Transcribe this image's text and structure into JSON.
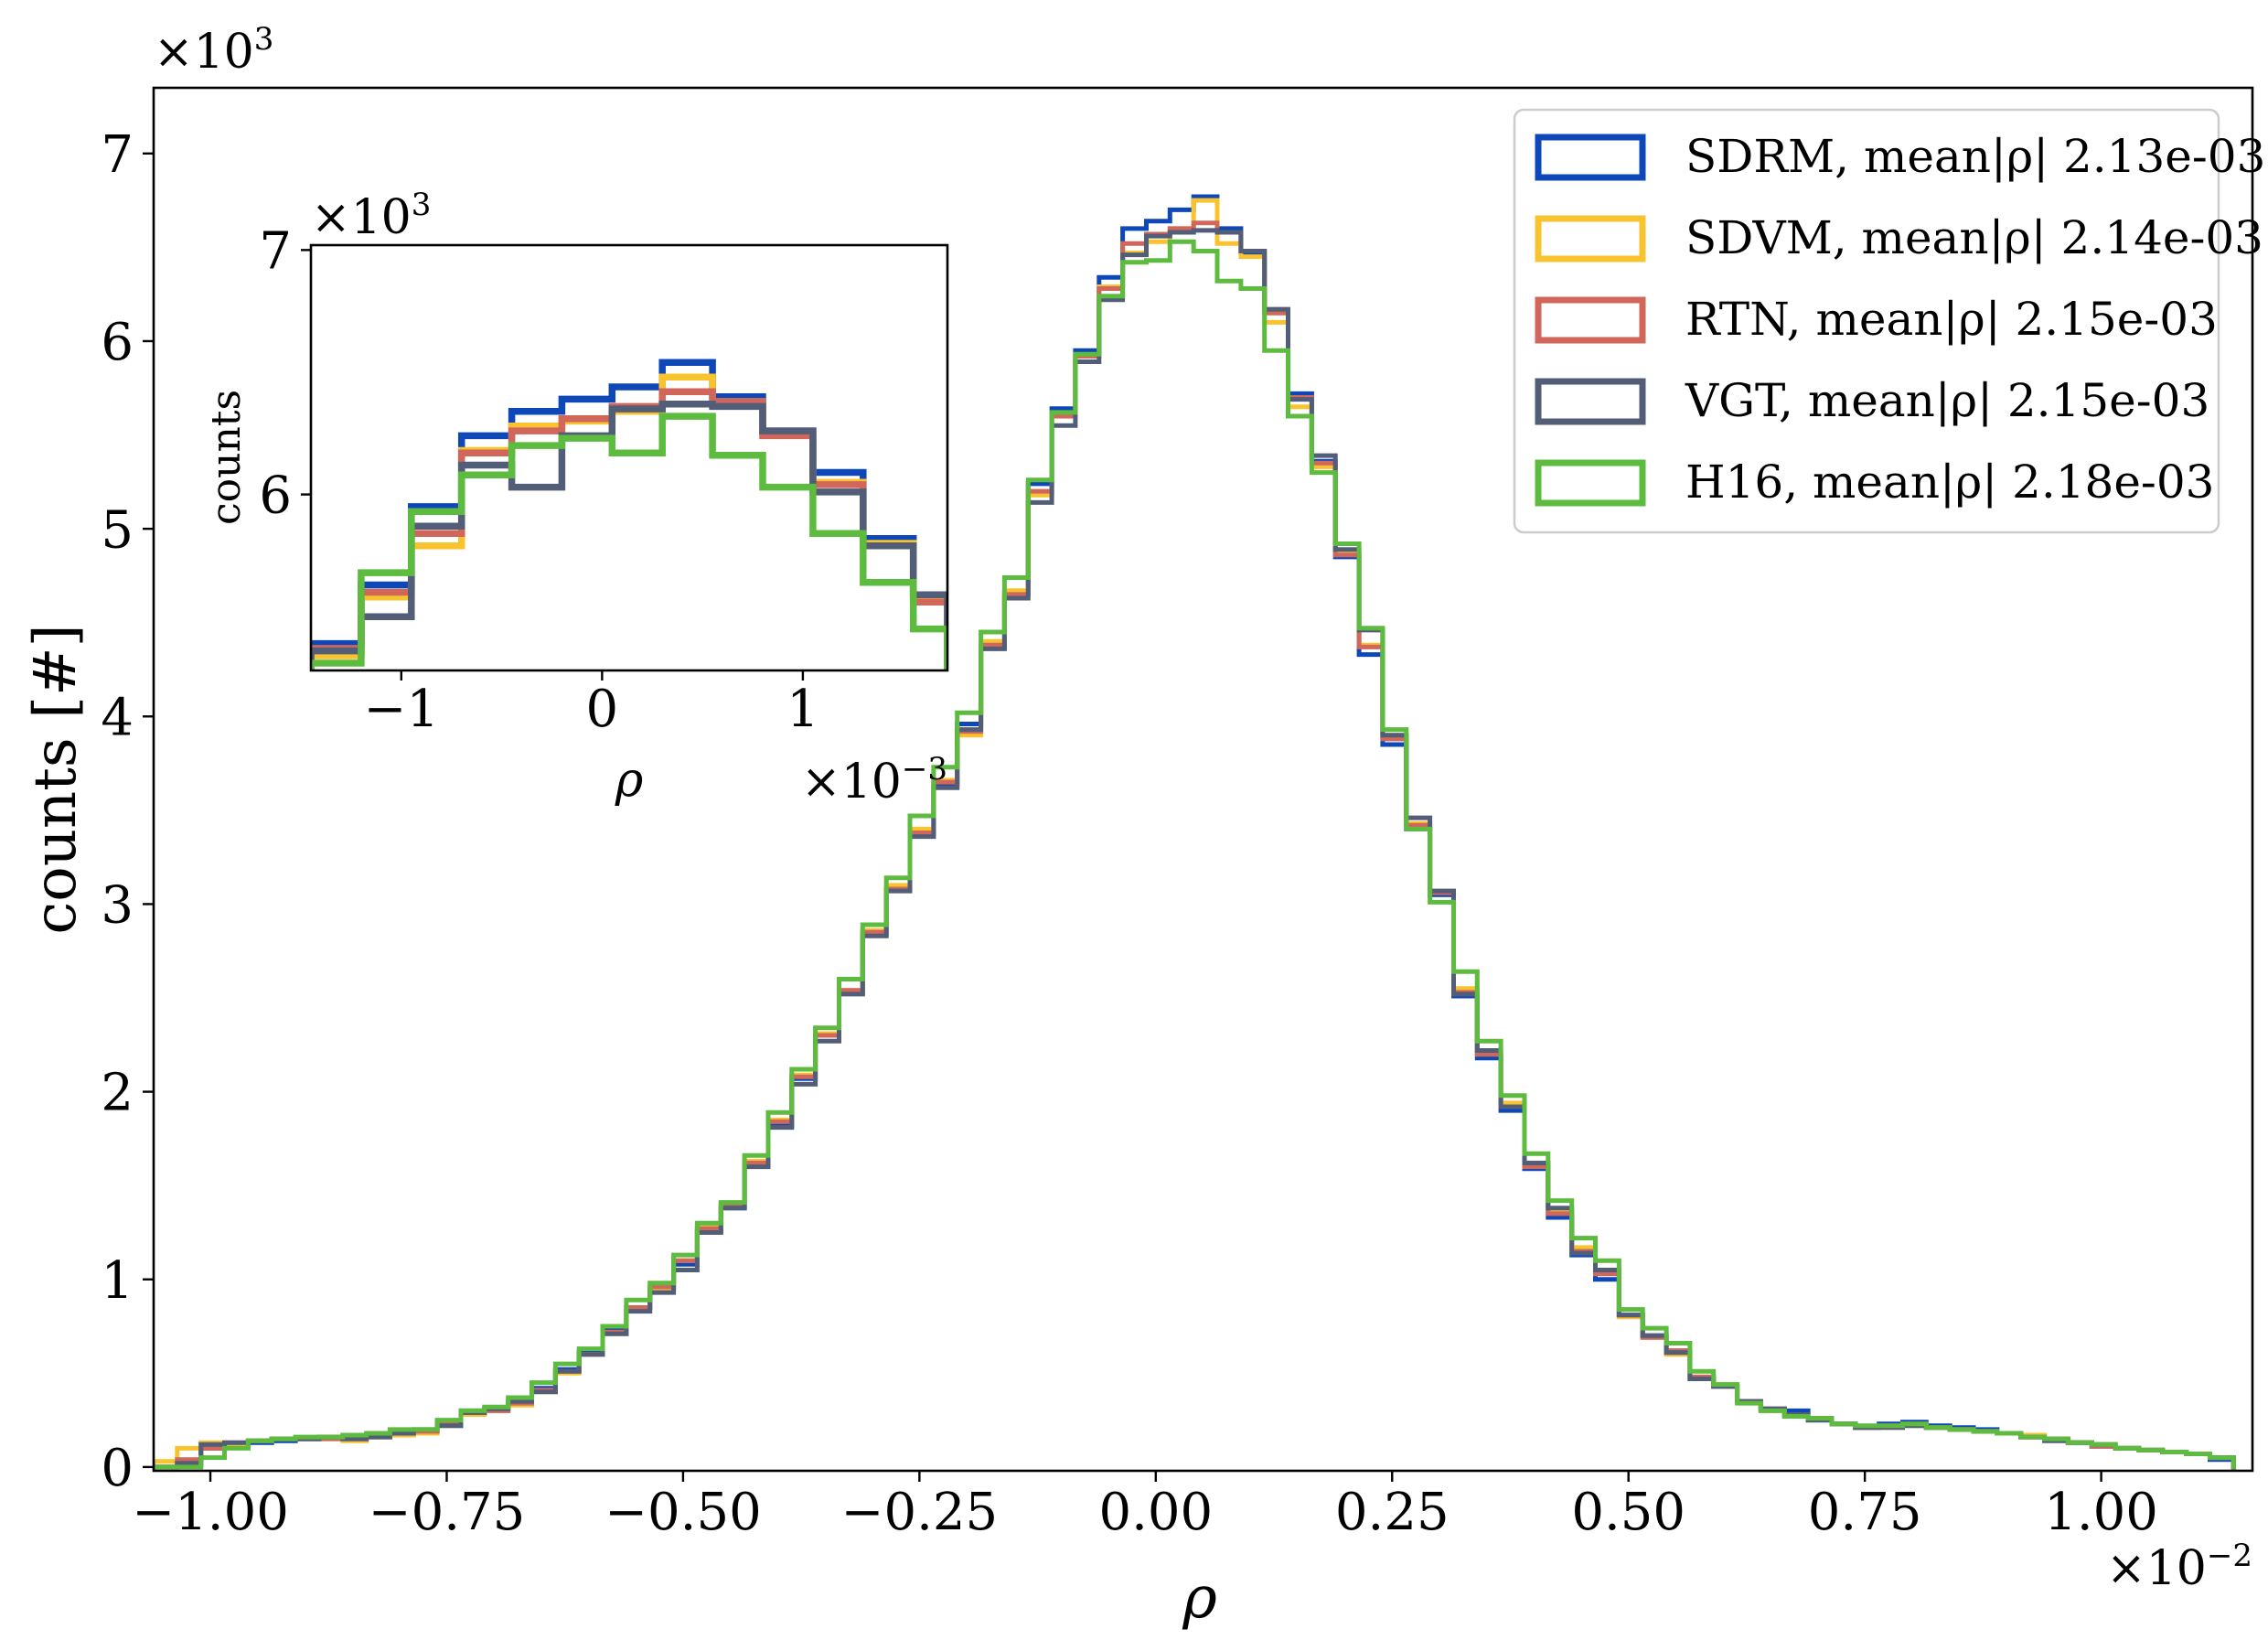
{
  "chart_data": [
    {
      "type": "histogram",
      "xlabel": "ρ",
      "ylabel": "counts [#]",
      "x_multiplier": "×10^-2",
      "y_multiplier": "×10^3",
      "xlim": [
        -1.06,
        1.16
      ],
      "ylim": [
        -0.02,
        7.35
      ],
      "xticks": [
        -1.0,
        -0.75,
        -0.5,
        -0.25,
        0.0,
        0.25,
        0.5,
        0.75,
        1.0
      ],
      "xtick_labels": [
        "−1.00",
        "−0.75",
        "−0.50",
        "−0.25",
        "0.00",
        "0.25",
        "0.50",
        "0.75",
        "1.00"
      ],
      "yticks": [
        0,
        1,
        2,
        3,
        4,
        5,
        6,
        7
      ],
      "ytick_labels": [
        "0",
        "1",
        "2",
        "3",
        "4",
        "5",
        "6",
        "7"
      ],
      "grid": false,
      "legend_position": "top-right",
      "bin_edges": [
        -1.06,
        -1.035,
        -1.01,
        -0.985,
        -0.96,
        -0.935,
        -0.91,
        -0.885,
        -0.86,
        -0.835,
        -0.81,
        -0.785,
        -0.76,
        -0.735,
        -0.71,
        -0.685,
        -0.66,
        -0.635,
        -0.61,
        -0.585,
        -0.56,
        -0.535,
        -0.51,
        -0.485,
        -0.46,
        -0.435,
        -0.41,
        -0.385,
        -0.36,
        -0.335,
        -0.31,
        -0.285,
        -0.26,
        -0.235,
        -0.21,
        -0.185,
        -0.16,
        -0.135,
        -0.11,
        -0.085,
        -0.06,
        -0.035,
        -0.01,
        0.015,
        0.04,
        0.065,
        0.09,
        0.115,
        0.14,
        0.165,
        0.19,
        0.215,
        0.24,
        0.265,
        0.29,
        0.315,
        0.34,
        0.365,
        0.39,
        0.415,
        0.44,
        0.465,
        0.49,
        0.515,
        0.54,
        0.565,
        0.59,
        0.615,
        0.64,
        0.665,
        0.69,
        0.715,
        0.74,
        0.765,
        0.79,
        0.815,
        0.84,
        0.865,
        0.89,
        0.915,
        0.94,
        0.965,
        0.99,
        1.015,
        1.04,
        1.065,
        1.09,
        1.115,
        1.14
      ],
      "series": [
        {
          "name": "SDRM, mean|ρ| 2.13e-03",
          "color": "#0d47b8",
          "values": [
            0.0,
            0.01,
            0.1,
            0.11,
            0.13,
            0.14,
            0.15,
            0.16,
            0.15,
            0.17,
            0.18,
            0.19,
            0.24,
            0.3,
            0.31,
            0.35,
            0.42,
            0.52,
            0.61,
            0.74,
            0.85,
            0.95,
            1.08,
            1.26,
            1.38,
            1.62,
            1.82,
            2.07,
            2.3,
            2.53,
            2.84,
            3.08,
            3.38,
            3.64,
            3.96,
            4.37,
            4.66,
            5.24,
            5.64,
            5.95,
            6.34,
            6.6,
            6.64,
            6.7,
            6.77,
            6.6,
            6.47,
            6.16,
            5.72,
            5.36,
            4.85,
            4.33,
            3.85,
            3.4,
            3.05,
            2.51,
            2.18,
            1.9,
            1.59,
            1.33,
            1.13,
            1.0,
            0.81,
            0.7,
            0.62,
            0.47,
            0.43,
            0.35,
            0.31,
            0.3,
            0.25,
            0.23,
            0.21,
            0.23,
            0.24,
            0.22,
            0.21,
            0.2,
            0.18,
            0.16,
            0.15,
            0.13,
            0.11,
            0.1,
            0.09,
            0.08,
            0.07,
            0.04
          ]
        },
        {
          "name": "SDVM, mean|ρ| 2.14e-03",
          "color": "#f9c32f",
          "values": [
            0.03,
            0.1,
            0.13,
            0.12,
            0.14,
            0.15,
            0.15,
            0.15,
            0.14,
            0.16,
            0.17,
            0.18,
            0.22,
            0.28,
            0.3,
            0.33,
            0.4,
            0.5,
            0.6,
            0.71,
            0.84,
            0.95,
            1.1,
            1.28,
            1.4,
            1.63,
            1.85,
            2.09,
            2.31,
            2.54,
            2.86,
            3.1,
            3.4,
            3.66,
            3.9,
            4.4,
            4.67,
            5.18,
            5.6,
            5.92,
            6.29,
            6.47,
            6.53,
            6.6,
            6.75,
            6.52,
            6.45,
            6.1,
            5.65,
            5.33,
            4.88,
            4.38,
            3.9,
            3.43,
            3.07,
            2.55,
            2.2,
            1.94,
            1.61,
            1.36,
            1.17,
            1.03,
            0.8,
            0.69,
            0.6,
            0.48,
            0.44,
            0.35,
            0.3,
            0.27,
            0.26,
            0.23,
            0.21,
            0.21,
            0.22,
            0.21,
            0.2,
            0.19,
            0.18,
            0.17,
            0.15,
            0.13,
            0.12,
            0.1,
            0.09,
            0.08,
            0.07,
            0.05
          ]
        },
        {
          "name": "RTN, mean|ρ| 2.15e-03",
          "color": "#d1665a",
          "values": [
            0.0,
            0.04,
            0.1,
            0.13,
            0.14,
            0.15,
            0.15,
            0.15,
            0.15,
            0.16,
            0.18,
            0.19,
            0.23,
            0.29,
            0.3,
            0.34,
            0.41,
            0.51,
            0.6,
            0.72,
            0.85,
            0.96,
            1.1,
            1.27,
            1.39,
            1.62,
            1.84,
            2.08,
            2.3,
            2.54,
            2.85,
            3.08,
            3.38,
            3.65,
            3.92,
            4.38,
            4.65,
            5.2,
            5.6,
            5.92,
            6.28,
            6.52,
            6.57,
            6.6,
            6.63,
            6.58,
            6.48,
            6.15,
            5.7,
            5.35,
            4.86,
            4.37,
            3.88,
            3.42,
            3.06,
            2.53,
            2.2,
            1.92,
            1.6,
            1.35,
            1.15,
            1.03,
            0.81,
            0.69,
            0.62,
            0.48,
            0.43,
            0.35,
            0.31,
            0.28,
            0.26,
            0.23,
            0.21,
            0.22,
            0.23,
            0.21,
            0.2,
            0.19,
            0.18,
            0.16,
            0.15,
            0.13,
            0.11,
            0.1,
            0.09,
            0.08,
            0.07,
            0.05
          ]
        },
        {
          "name": "VGT, mean|ρ| 2.15e-03",
          "color": "#525e78",
          "values": [
            0.0,
            0.02,
            0.12,
            0.13,
            0.14,
            0.15,
            0.15,
            0.16,
            0.15,
            0.16,
            0.18,
            0.2,
            0.22,
            0.29,
            0.31,
            0.35,
            0.4,
            0.51,
            0.6,
            0.71,
            0.83,
            0.93,
            1.05,
            1.25,
            1.38,
            1.6,
            1.81,
            2.04,
            2.27,
            2.52,
            2.83,
            3.07,
            3.36,
            3.62,
            3.93,
            4.36,
            4.63,
            5.14,
            5.55,
            5.89,
            6.22,
            6.46,
            6.56,
            6.58,
            6.59,
            6.58,
            6.48,
            6.17,
            5.69,
            5.39,
            4.89,
            4.46,
            3.9,
            3.46,
            3.07,
            2.52,
            2.22,
            1.92,
            1.62,
            1.38,
            1.14,
            1.05,
            0.81,
            0.7,
            0.61,
            0.47,
            0.43,
            0.35,
            0.31,
            0.28,
            0.25,
            0.23,
            0.21,
            0.21,
            0.22,
            0.21,
            0.2,
            0.19,
            0.18,
            0.16,
            0.14,
            0.13,
            0.12,
            0.1,
            0.09,
            0.08,
            0.07,
            0.05
          ]
        },
        {
          "name": "H16, mean|ρ| 2.18e-03",
          "color": "#5dbb3f",
          "values": [
            0.0,
            0.0,
            0.05,
            0.1,
            0.14,
            0.15,
            0.16,
            0.16,
            0.17,
            0.18,
            0.2,
            0.2,
            0.25,
            0.3,
            0.32,
            0.37,
            0.45,
            0.55,
            0.63,
            0.75,
            0.89,
            0.98,
            1.13,
            1.3,
            1.41,
            1.66,
            1.89,
            2.12,
            2.34,
            2.6,
            2.89,
            3.14,
            3.47,
            3.73,
            4.02,
            4.45,
            4.74,
            5.26,
            5.62,
            5.93,
            6.24,
            6.42,
            6.43,
            6.53,
            6.48,
            6.32,
            6.28,
            5.95,
            5.6,
            5.3,
            4.92,
            4.47,
            3.93,
            3.4,
            3.01,
            2.64,
            2.27,
            1.98,
            1.67,
            1.42,
            1.22,
            1.1,
            0.84,
            0.74,
            0.66,
            0.51,
            0.44,
            0.34,
            0.3,
            0.27,
            0.26,
            0.23,
            0.22,
            0.22,
            0.23,
            0.21,
            0.2,
            0.19,
            0.18,
            0.16,
            0.15,
            0.13,
            0.12,
            0.1,
            0.09,
            0.08,
            0.07,
            0.05
          ]
        }
      ]
    },
    {
      "type": "histogram",
      "role": "inset",
      "xlabel": "ρ",
      "ylabel": "counts",
      "x_multiplier": "×10^-3",
      "y_multiplier": "×10^3",
      "xlim": [
        -1.45,
        1.72
      ],
      "ylim": [
        5.28,
        7.02
      ],
      "xticks": [
        -1,
        0,
        1
      ],
      "xtick_labels": [
        "−1",
        "0",
        "1"
      ],
      "yticks": [
        6,
        7
      ],
      "ytick_labels": [
        "6",
        "7"
      ],
      "bin_edges": [
        -1.45,
        -1.2,
        -0.95,
        -0.7,
        -0.45,
        -0.2,
        0.05,
        0.3,
        0.55,
        0.8,
        1.05,
        1.3,
        1.55,
        1.72
      ],
      "series": [
        {
          "name": "SDRM",
          "color": "#0d47b8",
          "values": [
            5.39,
            5.63,
            5.95,
            6.24,
            6.34,
            6.39,
            6.44,
            6.54,
            6.4,
            6.26,
            6.09,
            5.82,
            5.59
          ]
        },
        {
          "name": "SDVM",
          "color": "#f9c32f",
          "values": [
            5.34,
            5.58,
            5.79,
            6.18,
            6.28,
            6.3,
            6.34,
            6.48,
            6.38,
            6.25,
            6.05,
            5.8,
            5.57
          ]
        },
        {
          "name": "RTN",
          "color": "#d1665a",
          "values": [
            5.37,
            5.6,
            5.84,
            6.17,
            6.26,
            6.31,
            6.36,
            6.42,
            6.38,
            6.24,
            6.04,
            5.79,
            5.56
          ]
        },
        {
          "name": "VGT",
          "color": "#525e78",
          "values": [
            5.36,
            5.5,
            5.87,
            6.12,
            6.03,
            6.24,
            6.35,
            6.37,
            6.36,
            6.26,
            6.01,
            5.79,
            5.59
          ]
        },
        {
          "name": "H16",
          "color": "#5dbb3f",
          "values": [
            5.31,
            5.68,
            5.93,
            6.08,
            6.2,
            6.23,
            6.17,
            6.32,
            6.16,
            6.03,
            5.84,
            5.64,
            5.45
          ]
        }
      ]
    }
  ]
}
